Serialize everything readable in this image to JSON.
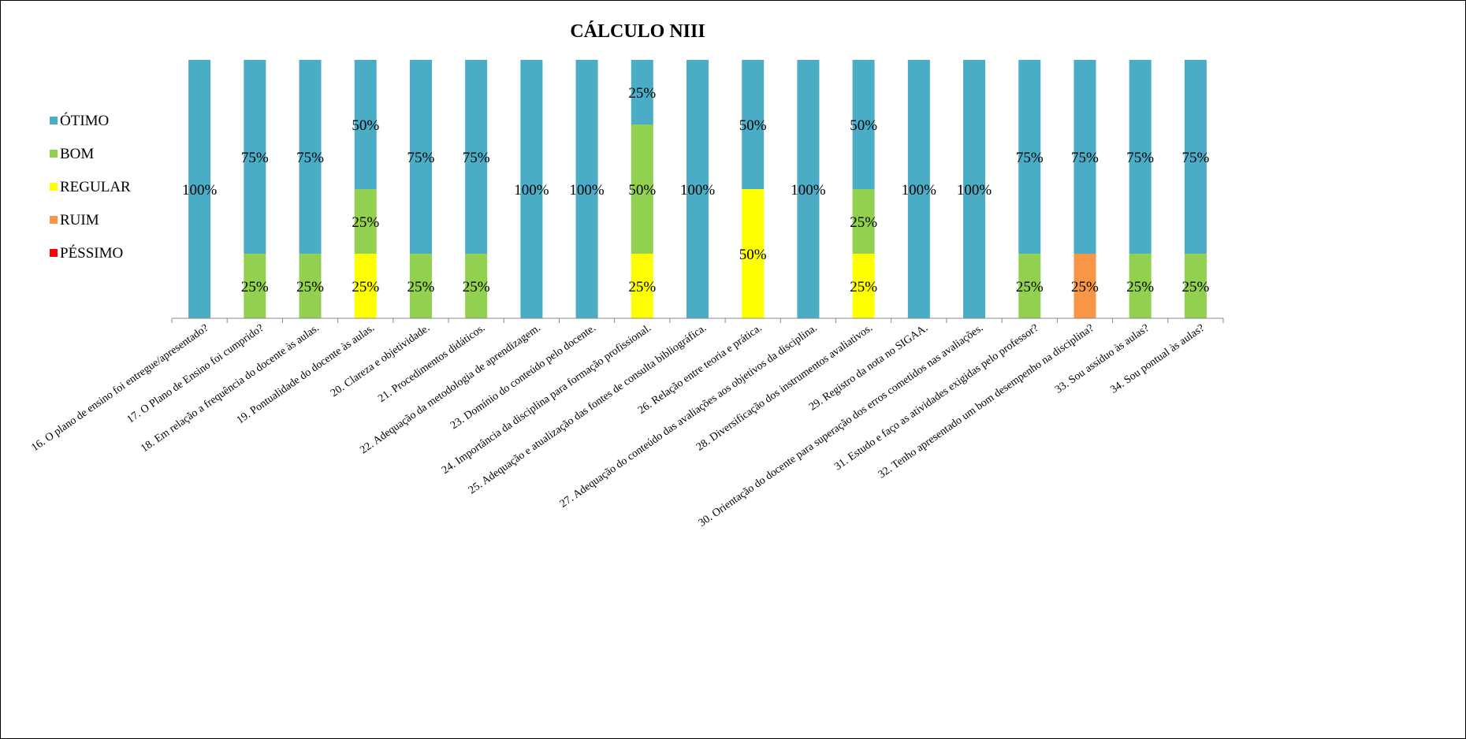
{
  "chart_data": {
    "type": "bar",
    "stacked": "percent",
    "title": "CÁLCULO NIII",
    "legend_position": "left",
    "ylim": [
      0,
      100
    ],
    "grid": false,
    "categories": [
      "16. O plano de ensino foi entregue/apresentado?",
      "17.  O Plano de Ensino foi cumprido?",
      "18.  Em relação a frequência do docente às aulas.",
      "19. Pontualidade do docente às aulas.",
      "20. Clareza e objetividade.",
      "21. Procedimentos didáticos.",
      "22. Adequação da metodologia de aprendizagem.",
      "23. Domínio do conteúdo pelo docente.",
      "24. Importância da disciplina para formação profissional.",
      "25. Adequação e atualização das fontes de consulta bibliográfica.",
      "26. Relação entre teoria e prática.",
      "27. Adequação do conteúdo das avaliações aos objetivos da disciplina.",
      "28. Diversificação dos instrumentos avaliativos.",
      "29. Registro da nota no SIGAA.",
      "30. Orientação do docente para superação dos erros cometidos nas avaliações.",
      "31. Estudo e faço as atividades exigidas pelo professor?",
      "32. Tenho apresentado um bom desempenho na disciplina?",
      "33. Sou assíduo às aulas?",
      "34. Sou pontual às aulas?"
    ],
    "series": [
      {
        "name": "PÉSSIMO",
        "color": "#ff0000",
        "values": [
          0,
          0,
          0,
          0,
          0,
          0,
          0,
          0,
          0,
          0,
          0,
          0,
          0,
          0,
          0,
          0,
          0,
          0,
          0
        ]
      },
      {
        "name": "RUIM",
        "color": "#f79646",
        "values": [
          0,
          0,
          0,
          0,
          0,
          0,
          0,
          0,
          0,
          0,
          0,
          0,
          0,
          0,
          0,
          0,
          25,
          0,
          0
        ]
      },
      {
        "name": "REGULAR",
        "color": "#ffff00",
        "values": [
          0,
          0,
          0,
          25,
          0,
          0,
          0,
          0,
          25,
          0,
          50,
          0,
          25,
          0,
          0,
          0,
          0,
          0,
          0
        ]
      },
      {
        "name": "BOM",
        "color": "#92d050",
        "values": [
          0,
          25,
          25,
          25,
          25,
          25,
          0,
          0,
          50,
          0,
          0,
          0,
          25,
          0,
          0,
          25,
          0,
          25,
          25
        ]
      },
      {
        "name": "ÓTIMO",
        "color": "#4bacc6",
        "values": [
          100,
          75,
          75,
          50,
          75,
          75,
          100,
          100,
          25,
          100,
          50,
          100,
          50,
          100,
          100,
          75,
          75,
          75,
          75
        ]
      }
    ],
    "legend_order": [
      "ÓTIMO",
      "BOM",
      "REGULAR",
      "RUIM",
      "PÉSSIMO"
    ],
    "value_suffix": "%"
  }
}
